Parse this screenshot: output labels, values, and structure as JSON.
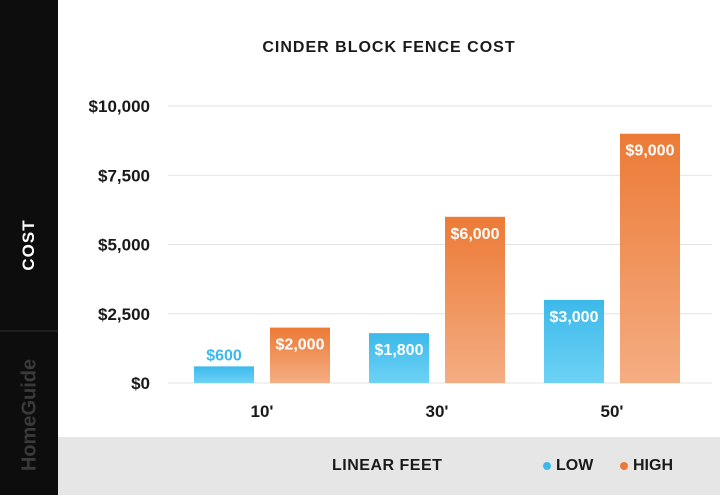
{
  "chart_data": {
    "type": "bar",
    "title": "CINDER BLOCK FENCE COST",
    "xlabel": "LINEAR FEET",
    "ylabel": "COST",
    "categories": [
      "10'",
      "30'",
      "50'"
    ],
    "series": [
      {
        "name": "LOW",
        "values": [
          600,
          1800,
          3000
        ],
        "labels": [
          "$600",
          "$1,800",
          "$3,000"
        ],
        "color": "#3cb9ea"
      },
      {
        "name": "HIGH",
        "values": [
          2000,
          6000,
          9000
        ],
        "labels": [
          "$2,000",
          "$6,000",
          "$9,000"
        ],
        "color": "#ec7a36"
      }
    ],
    "ylim": [
      0,
      10000
    ],
    "yticks": [
      0,
      2500,
      5000,
      7500,
      10000
    ],
    "ytick_labels": [
      "$0",
      "$2,500",
      "$5,000",
      "$7,500",
      "$10,000"
    ],
    "grid": true,
    "legend_position": "bottom-right"
  },
  "brand": "HomeGuide",
  "colors": {
    "low_top": "#3cb9ea",
    "low_bottom": "#6dd2f5",
    "high_top": "#ec7a36",
    "high_bottom": "#f4ad82",
    "low_label_outside": "#3cb9ea",
    "label_inside": "#ffffff",
    "sidebar": "#0d0d0d",
    "footer": "#e6e6e6",
    "grid": "#e3e3e3"
  }
}
